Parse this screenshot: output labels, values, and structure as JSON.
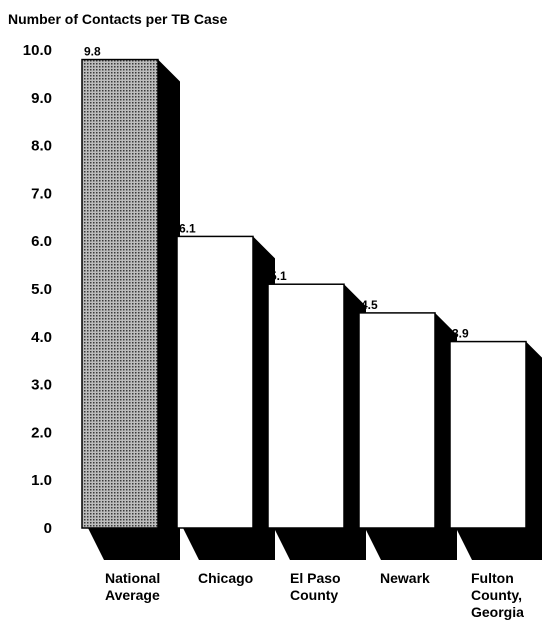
{
  "chart_data": {
    "type": "bar",
    "title": "Number of Contacts per TB Case",
    "xlabel": "",
    "ylabel": "",
    "ylim": [
      0,
      10
    ],
    "y_ticks": [
      "0",
      "1.0",
      "2.0",
      "3.0",
      "4.0",
      "5.0",
      "6.0",
      "7.0",
      "8.0",
      "9.0",
      "10.0"
    ],
    "categories": [
      [
        "National",
        "Average"
      ],
      [
        "Chicago"
      ],
      [
        "El Paso",
        "County"
      ],
      [
        "Newark"
      ],
      [
        "Fulton",
        "County,",
        "Georgia"
      ]
    ],
    "values": [
      9.8,
      6.1,
      5.1,
      4.5,
      3.9
    ],
    "value_labels": [
      "9.8",
      "6.1",
      "5.1",
      "4.5",
      "3.9"
    ],
    "highlight": "National Average",
    "colors": {
      "highlight_fill": "pattern-dotted-gray",
      "bar_fill": "#ffffff",
      "shadow": "#000000"
    },
    "grid": false,
    "legend": "none"
  }
}
